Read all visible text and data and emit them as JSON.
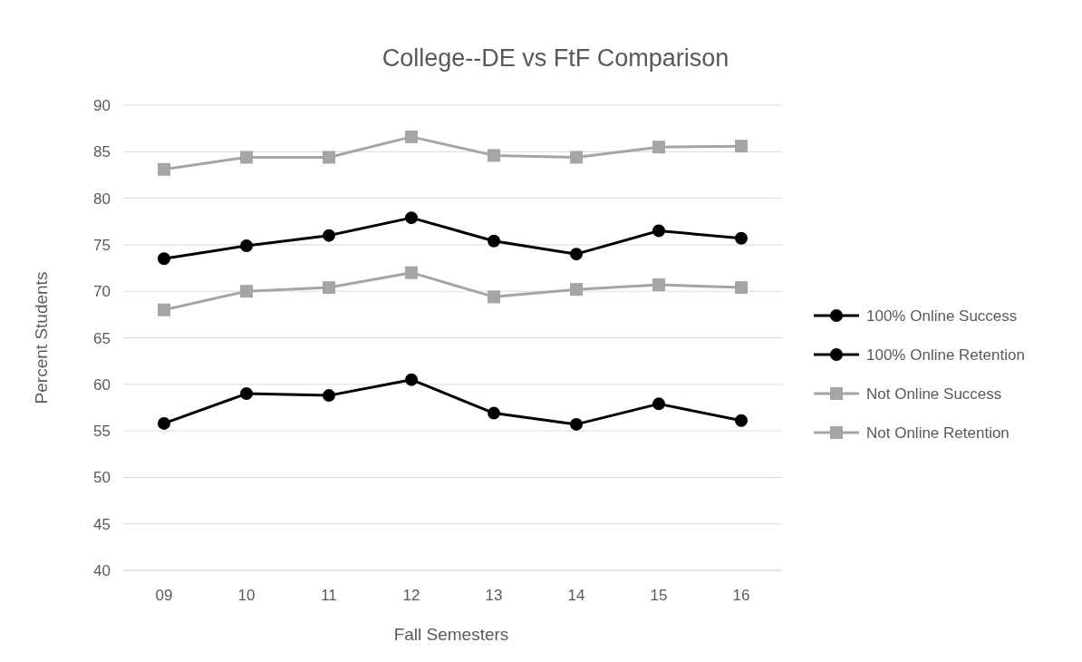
{
  "chart_data": {
    "type": "line",
    "title": "College--DE vs FtF Comparison",
    "xlabel": "Fall Semesters",
    "ylabel": "Percent Students",
    "categories": [
      "09",
      "10",
      "11",
      "12",
      "13",
      "14",
      "15",
      "16"
    ],
    "series": [
      {
        "name": "100% Online Success",
        "color": "#000000",
        "marker": "circle",
        "values": [
          55.8,
          59.0,
          58.8,
          60.5,
          56.9,
          55.7,
          57.9,
          56.1
        ]
      },
      {
        "name": "100% Online Retention",
        "color": "#000000",
        "marker": "circle",
        "values": [
          73.5,
          74.9,
          76.0,
          77.9,
          75.4,
          74.0,
          76.5,
          75.7
        ]
      },
      {
        "name": "Not Online Success",
        "color": "#a5a5a5",
        "marker": "square",
        "values": [
          68.0,
          70.0,
          70.4,
          72.0,
          69.4,
          70.2,
          70.7,
          70.4
        ]
      },
      {
        "name": "Not Online Retention",
        "color": "#a5a5a5",
        "marker": "square",
        "values": [
          83.1,
          84.4,
          84.4,
          86.6,
          84.6,
          84.4,
          85.5,
          85.6
        ]
      }
    ],
    "ylim": [
      40,
      90
    ],
    "yticks": [
      40,
      45,
      50,
      55,
      60,
      65,
      70,
      75,
      80,
      85,
      90
    ],
    "grid": "y",
    "legend": "right",
    "line_style": "solid"
  }
}
